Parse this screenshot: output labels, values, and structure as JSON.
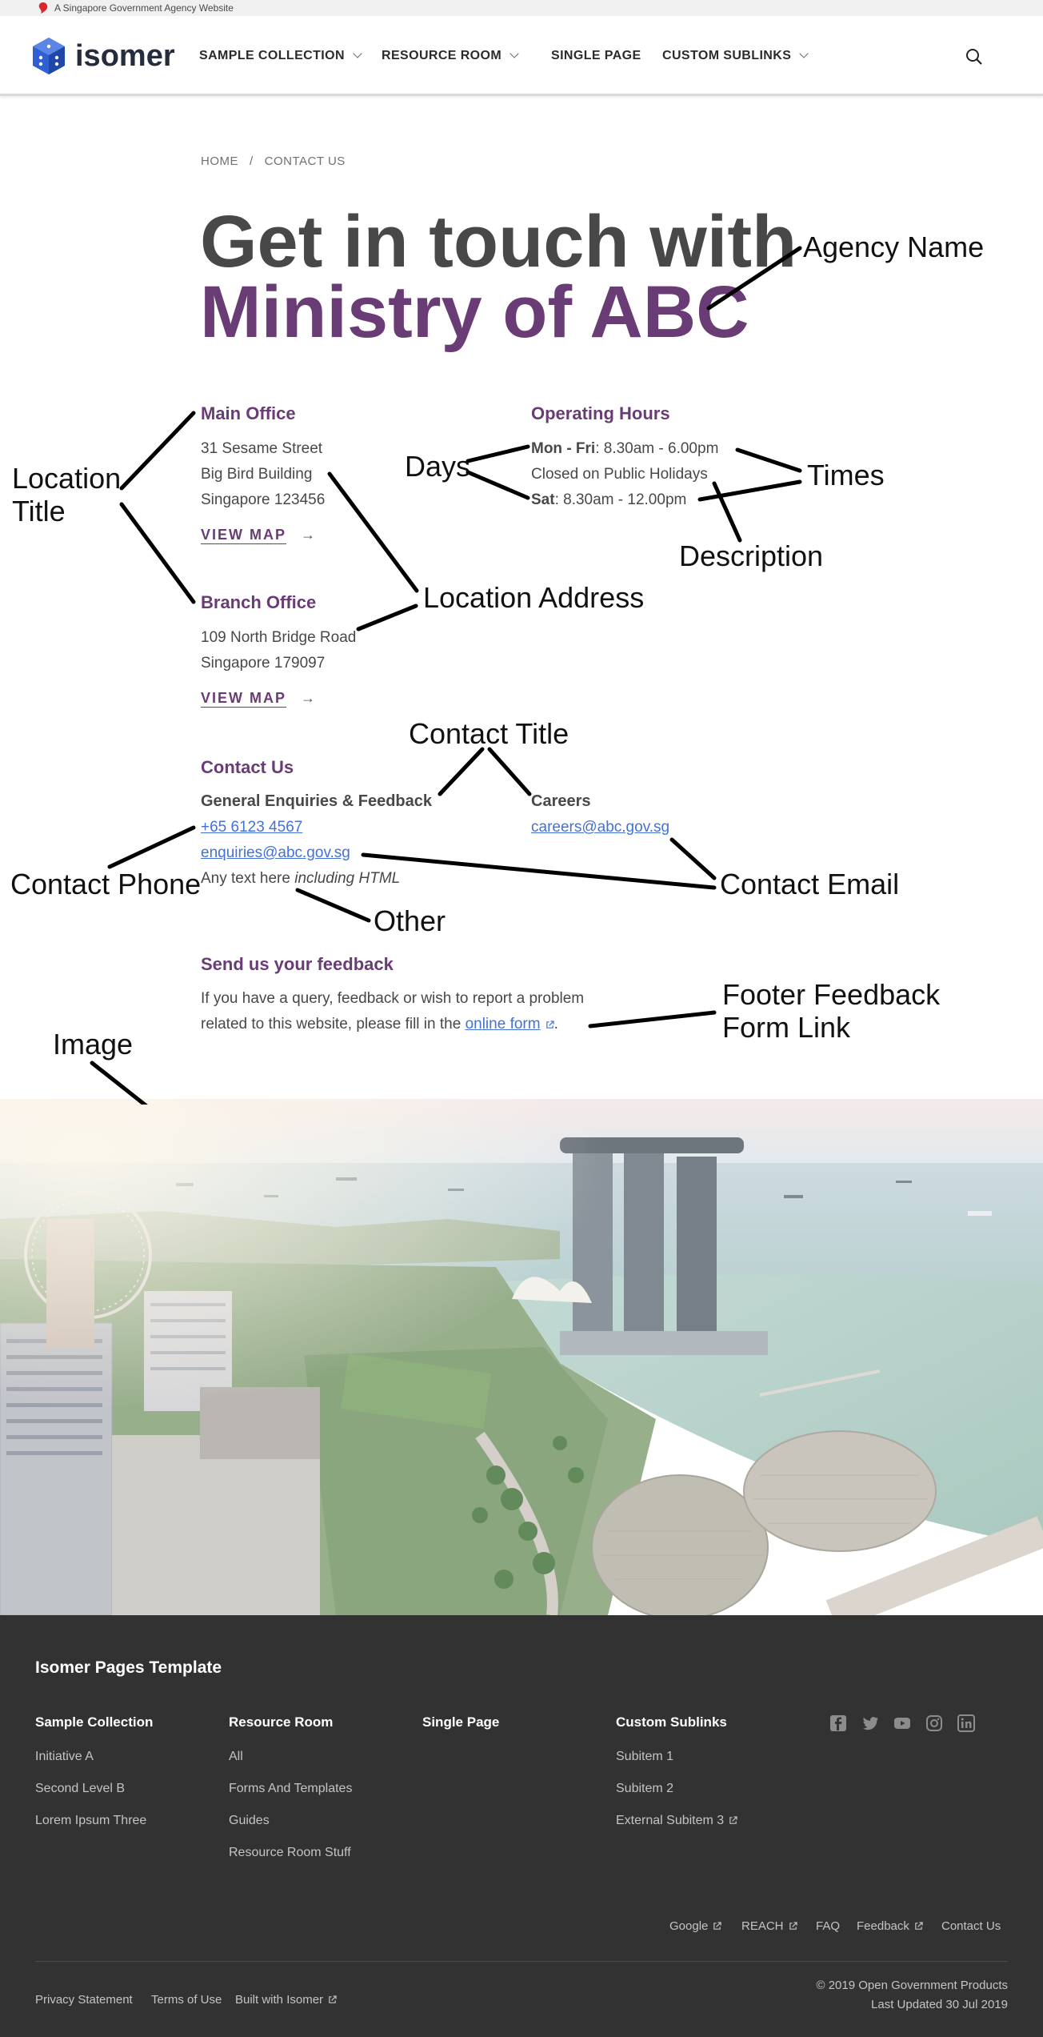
{
  "masthead": {
    "text": "A Singapore Government Agency Website"
  },
  "navbar": {
    "logo_text": "isomer",
    "items": [
      {
        "label": "SAMPLE COLLECTION",
        "has_dropdown": true
      },
      {
        "label": "RESOURCE ROOM",
        "has_dropdown": true
      },
      {
        "label": "SINGLE PAGE",
        "has_dropdown": false
      },
      {
        "label": "CUSTOM SUBLINKS",
        "has_dropdown": true
      }
    ]
  },
  "breadcrumb": {
    "home": "HOME",
    "separator": "/",
    "current": "CONTACT US"
  },
  "heading": {
    "line1": "Get in touch with",
    "agency": "Ministry of ABC"
  },
  "locations": {
    "main": {
      "title": "Main Office",
      "address": [
        "31 Sesame Street",
        "Big Bird Building",
        "Singapore 123456"
      ],
      "map_label": "VIEW MAP",
      "arrow": "→"
    },
    "branch": {
      "title": "Branch Office",
      "address": [
        "109 North Bridge Road",
        "Singapore 179097"
      ],
      "map_label": "VIEW MAP",
      "arrow": "→"
    }
  },
  "hours": {
    "title": "Operating Hours",
    "rows": [
      {
        "days": "Mon - Fri",
        "time": ": 8.30am - 6.00pm"
      },
      {
        "description": "Closed on Public Holidays"
      },
      {
        "days": "Sat",
        "time": ": 8.30am - 12.00pm"
      }
    ]
  },
  "contact": {
    "title": "Contact Us",
    "general": {
      "label": "General Enquiries & Feedback",
      "phone": "+65 6123 4567",
      "email": "enquiries@abc.gov.sg",
      "other_prefix": "Any text here ",
      "other_italic": "including HTML"
    },
    "careers": {
      "label": "Careers",
      "email": "careers@abc.gov.sg"
    }
  },
  "feedback": {
    "title": "Send us your feedback",
    "line1": "If you have a query, feedback or wish to report a problem",
    "line2_prefix": "related to this website, please fill in the ",
    "link": "online form",
    "suffix": "."
  },
  "annotations": {
    "agency_name": "Agency Name",
    "location_title_1": "Location",
    "location_title_2": "Title",
    "days": "Days",
    "times": "Times",
    "description": "Description",
    "location_address": "Location Address",
    "contact_title": "Contact Title",
    "contact_phone": "Contact Phone",
    "contact_email": "Contact Email",
    "other": "Other",
    "footer_feedback_1": "Footer Feedback",
    "footer_feedback_2": "Form Link",
    "image": "Image"
  },
  "footer": {
    "title": "Isomer Pages Template",
    "columns": [
      {
        "heading": "Sample Collection",
        "links": [
          "Initiative A",
          "Second Level B",
          "Lorem Ipsum Three"
        ]
      },
      {
        "heading": "Resource Room",
        "links": [
          "All",
          "Forms And Templates",
          "Guides",
          "Resource Room Stuff"
        ]
      },
      {
        "heading": "Single Page",
        "links": []
      },
      {
        "heading": "Custom Sublinks",
        "links": [
          "Subitem 1",
          "Subitem 2",
          "External Subitem 3"
        ]
      }
    ],
    "social": [
      "facebook-icon",
      "twitter-icon",
      "youtube-icon",
      "instagram-icon",
      "linkedin-icon"
    ],
    "bottom_links": [
      "Google",
      "REACH",
      "FAQ",
      "Feedback",
      "Contact Us"
    ],
    "legal_links": [
      "Privacy Statement",
      "Terms of Use",
      "Built with Isomer"
    ],
    "copyright": "© 2019 Open Government Products",
    "last_updated": "Last Updated 30 Jul 2019"
  },
  "colors": {
    "brand_purple": "#6a3c75",
    "link_blue": "#4372d6",
    "footer_bg": "#323232",
    "text": "#484848"
  }
}
